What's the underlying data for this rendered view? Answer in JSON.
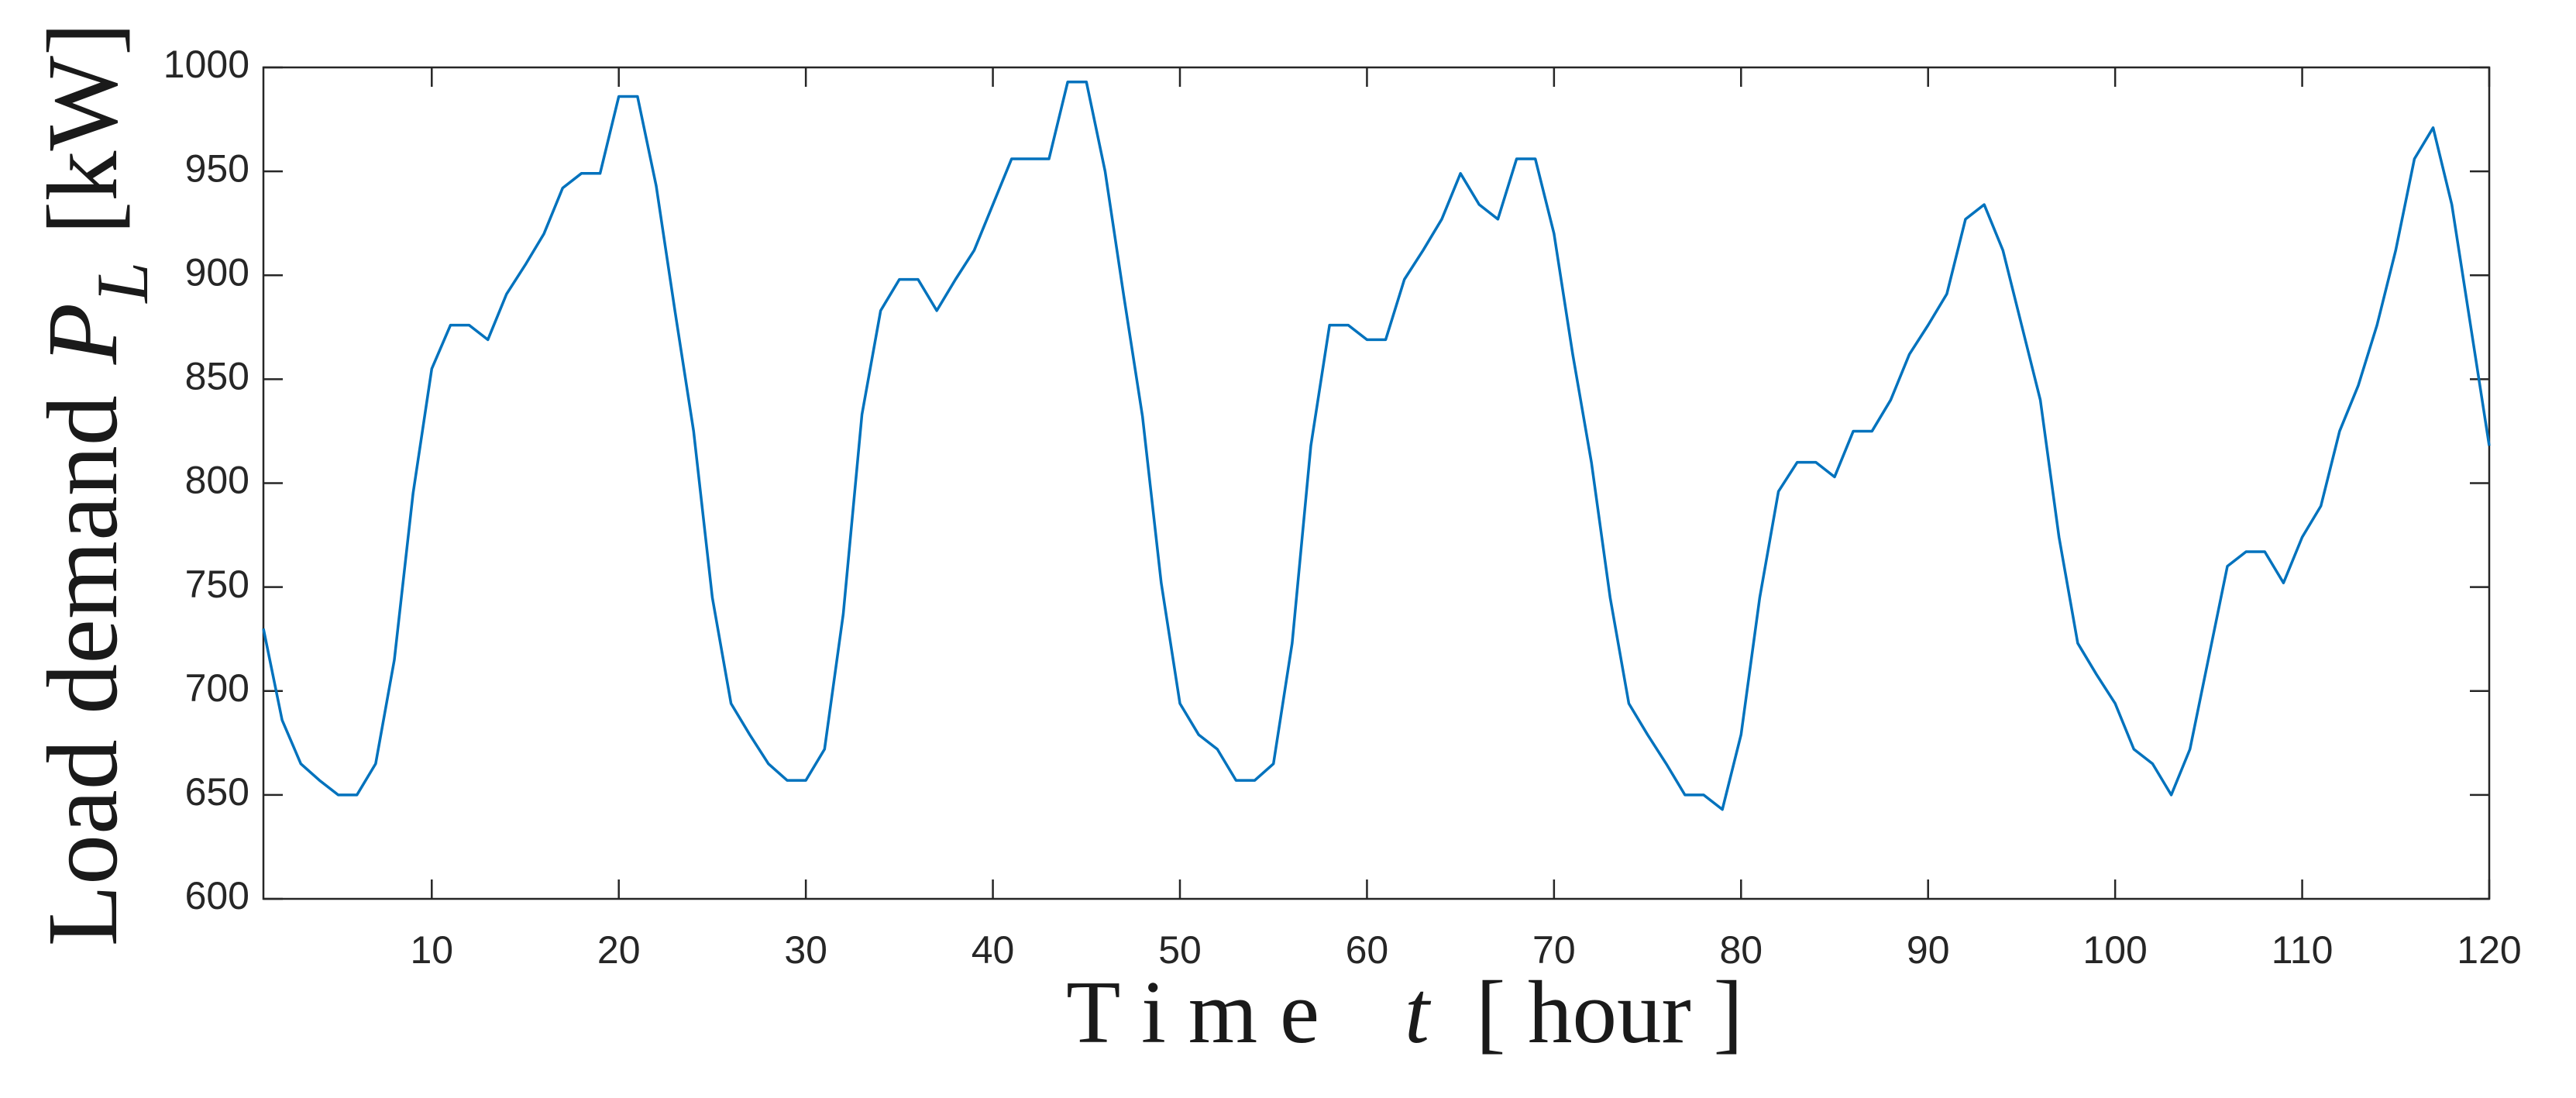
{
  "chart_data": {
    "type": "line",
    "ylabel": {
      "main": "Load demand",
      "symbol": "P",
      "subscript": "L",
      "unit": "[kW]"
    },
    "xlabel": {
      "main": "T i m e",
      "symbol": "t",
      "unit": "[ hour ]"
    },
    "x": [
      1,
      2,
      3,
      4,
      5,
      6,
      7,
      8,
      9,
      10,
      11,
      12,
      13,
      14,
      15,
      16,
      17,
      18,
      19,
      20,
      21,
      22,
      23,
      24,
      25,
      26,
      27,
      28,
      29,
      30,
      31,
      32,
      33,
      34,
      35,
      36,
      37,
      38,
      39,
      40,
      41,
      42,
      43,
      44,
      45,
      46,
      47,
      48,
      49,
      50,
      51,
      52,
      53,
      54,
      55,
      56,
      57,
      58,
      59,
      60,
      61,
      62,
      63,
      64,
      65,
      66,
      67,
      68,
      69,
      70,
      71,
      72,
      73,
      74,
      75,
      76,
      77,
      78,
      79,
      80,
      81,
      82,
      83,
      84,
      85,
      86,
      87,
      88,
      89,
      90,
      91,
      92,
      93,
      94,
      95,
      96,
      97,
      98,
      99,
      100,
      101,
      102,
      103,
      104,
      105,
      106,
      107,
      108,
      109,
      110,
      111,
      112,
      113,
      114,
      115,
      116,
      117,
      118,
      119,
      120
    ],
    "values": [
      730,
      686,
      665,
      657,
      650,
      650,
      665,
      715,
      795,
      855,
      876,
      876,
      869,
      891,
      905,
      920,
      942,
      949,
      949,
      986,
      986,
      943,
      883,
      825,
      745,
      694,
      679,
      665,
      657,
      657,
      672,
      737,
      833,
      883,
      898,
      898,
      883,
      898,
      912,
      934,
      956,
      956,
      956,
      993,
      993,
      950,
      890,
      832,
      752,
      694,
      679,
      672,
      657,
      657,
      665,
      723,
      818,
      876,
      876,
      869,
      869,
      898,
      912,
      927,
      949,
      934,
      927,
      956,
      956,
      920,
      862,
      810,
      745,
      694,
      679,
      665,
      650,
      650,
      643,
      679,
      745,
      796,
      810,
      810,
      803,
      825,
      825,
      840,
      862,
      876,
      891,
      927,
      934,
      912,
      876,
      840,
      774,
      723,
      708,
      694,
      672,
      665,
      650,
      672,
      716,
      760,
      767,
      767,
      752,
      774,
      789,
      825,
      847,
      876,
      912,
      956,
      971,
      934,
      876,
      818
    ],
    "color": "#0072bd",
    "xlim": [
      1,
      120
    ],
    "xticks": [
      10,
      20,
      30,
      40,
      50,
      60,
      70,
      80,
      90,
      100,
      110,
      120
    ],
    "ylim": [
      600,
      1000
    ],
    "yticks": [
      600,
      650,
      700,
      750,
      800,
      850,
      900,
      950,
      1000
    ],
    "grid": false
  }
}
